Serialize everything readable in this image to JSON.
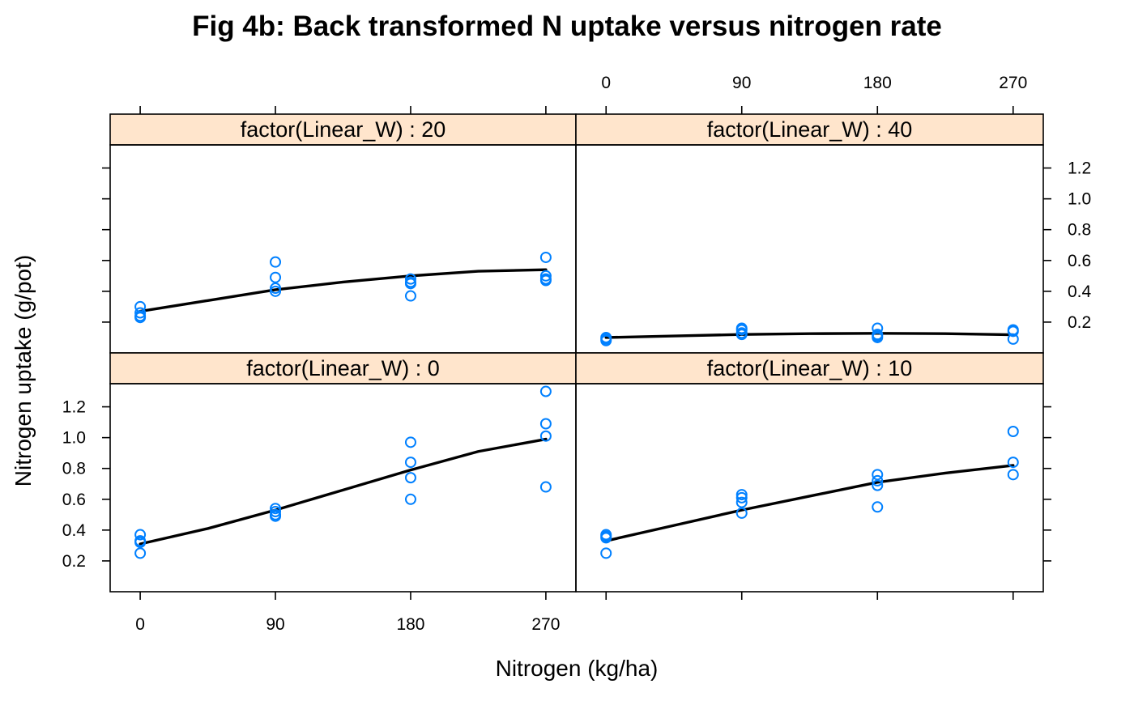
{
  "chart_data": {
    "type": "scatter",
    "title": "Fig 4b: Back transformed N uptake versus nitrogen rate",
    "xlabel": "Nitrogen (kg/ha)",
    "ylabel": "Nitrogen uptake (g/pot)",
    "x_ticks": [
      0,
      90,
      180,
      270
    ],
    "x_tick_labels": [
      "0",
      "90",
      "180",
      "270"
    ],
    "y_ticks": [
      0.2,
      0.4,
      0.6,
      0.8,
      1.0,
      1.2
    ],
    "y_tick_labels": [
      "0.2",
      "0.4",
      "0.6",
      "0.8",
      "1.0",
      "1.2"
    ],
    "xlim": [
      -20,
      290
    ],
    "ylim": [
      0.0,
      1.35
    ],
    "point_color": "#0080FF",
    "strip_color": "#FFE5CC",
    "line_color": "#000000",
    "panels": [
      {
        "strip_label": "factor(Linear_W) : 20",
        "row": "top",
        "col": "left",
        "points": [
          [
            0,
            0.3
          ],
          [
            0,
            0.26
          ],
          [
            0,
            0.24
          ],
          [
            0,
            0.23
          ],
          [
            90,
            0.59
          ],
          [
            90,
            0.49
          ],
          [
            90,
            0.42
          ],
          [
            90,
            0.4
          ],
          [
            180,
            0.48
          ],
          [
            180,
            0.46
          ],
          [
            180,
            0.45
          ],
          [
            180,
            0.37
          ],
          [
            270,
            0.62
          ],
          [
            270,
            0.5
          ],
          [
            270,
            0.48
          ],
          [
            270,
            0.47
          ]
        ],
        "fit": [
          [
            0,
            0.27
          ],
          [
            45,
            0.34
          ],
          [
            90,
            0.41
          ],
          [
            135,
            0.46
          ],
          [
            180,
            0.5
          ],
          [
            225,
            0.53
          ],
          [
            270,
            0.54
          ]
        ]
      },
      {
        "strip_label": "factor(Linear_W) : 40",
        "row": "top",
        "col": "right",
        "points": [
          [
            0,
            0.1
          ],
          [
            0,
            0.09
          ],
          [
            0,
            0.08
          ],
          [
            90,
            0.16
          ],
          [
            90,
            0.15
          ],
          [
            90,
            0.13
          ],
          [
            90,
            0.12
          ],
          [
            180,
            0.16
          ],
          [
            180,
            0.12
          ],
          [
            180,
            0.11
          ],
          [
            180,
            0.1
          ],
          [
            270,
            0.15
          ],
          [
            270,
            0.14
          ],
          [
            270,
            0.09
          ]
        ],
        "fit": [
          [
            0,
            0.1
          ],
          [
            45,
            0.11
          ],
          [
            90,
            0.12
          ],
          [
            135,
            0.125
          ],
          [
            180,
            0.127
          ],
          [
            225,
            0.125
          ],
          [
            270,
            0.118
          ]
        ]
      },
      {
        "strip_label": "factor(Linear_W) : 0",
        "row": "bottom",
        "col": "left",
        "points": [
          [
            0,
            0.37
          ],
          [
            0,
            0.33
          ],
          [
            0,
            0.32
          ],
          [
            0,
            0.25
          ],
          [
            90,
            0.54
          ],
          [
            90,
            0.52
          ],
          [
            90,
            0.5
          ],
          [
            90,
            0.49
          ],
          [
            180,
            0.97
          ],
          [
            180,
            0.84
          ],
          [
            180,
            0.74
          ],
          [
            180,
            0.6
          ],
          [
            270,
            1.3
          ],
          [
            270,
            1.09
          ],
          [
            270,
            1.01
          ],
          [
            270,
            0.68
          ]
        ],
        "fit": [
          [
            0,
            0.31
          ],
          [
            45,
            0.41
          ],
          [
            90,
            0.53
          ],
          [
            135,
            0.66
          ],
          [
            180,
            0.79
          ],
          [
            225,
            0.91
          ],
          [
            270,
            0.99
          ]
        ]
      },
      {
        "strip_label": "factor(Linear_W) : 10",
        "row": "bottom",
        "col": "right",
        "points": [
          [
            0,
            0.37
          ],
          [
            0,
            0.36
          ],
          [
            0,
            0.35
          ],
          [
            0,
            0.25
          ],
          [
            90,
            0.63
          ],
          [
            90,
            0.61
          ],
          [
            90,
            0.58
          ],
          [
            90,
            0.51
          ],
          [
            180,
            0.76
          ],
          [
            180,
            0.72
          ],
          [
            180,
            0.69
          ],
          [
            180,
            0.55
          ],
          [
            270,
            1.04
          ],
          [
            270,
            0.84
          ],
          [
            270,
            0.76
          ]
        ],
        "fit": [
          [
            0,
            0.33
          ],
          [
            45,
            0.43
          ],
          [
            90,
            0.53
          ],
          [
            135,
            0.62
          ],
          [
            180,
            0.71
          ],
          [
            225,
            0.77
          ],
          [
            270,
            0.82
          ]
        ]
      }
    ]
  }
}
